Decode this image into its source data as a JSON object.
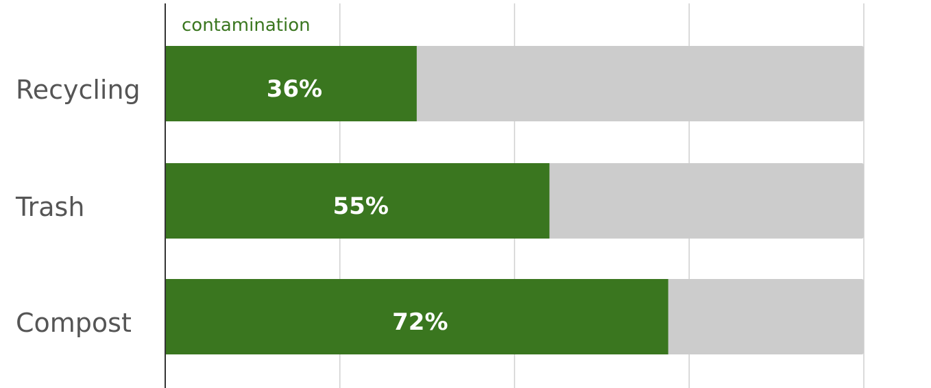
{
  "chart_data": {
    "type": "bar",
    "orientation": "horizontal",
    "categories": [
      "Recycling",
      "Trash",
      "Compost"
    ],
    "series": [
      {
        "name": "contamination",
        "color": "#3a761f",
        "values": [
          36,
          55,
          72
        ],
        "value_labels": [
          "36%",
          "55%",
          "72%"
        ]
      }
    ],
    "track_color": "#cccccc",
    "xlim": [
      0,
      100
    ],
    "xticks": [
      0,
      25,
      50,
      75,
      100
    ],
    "grid": true
  }
}
